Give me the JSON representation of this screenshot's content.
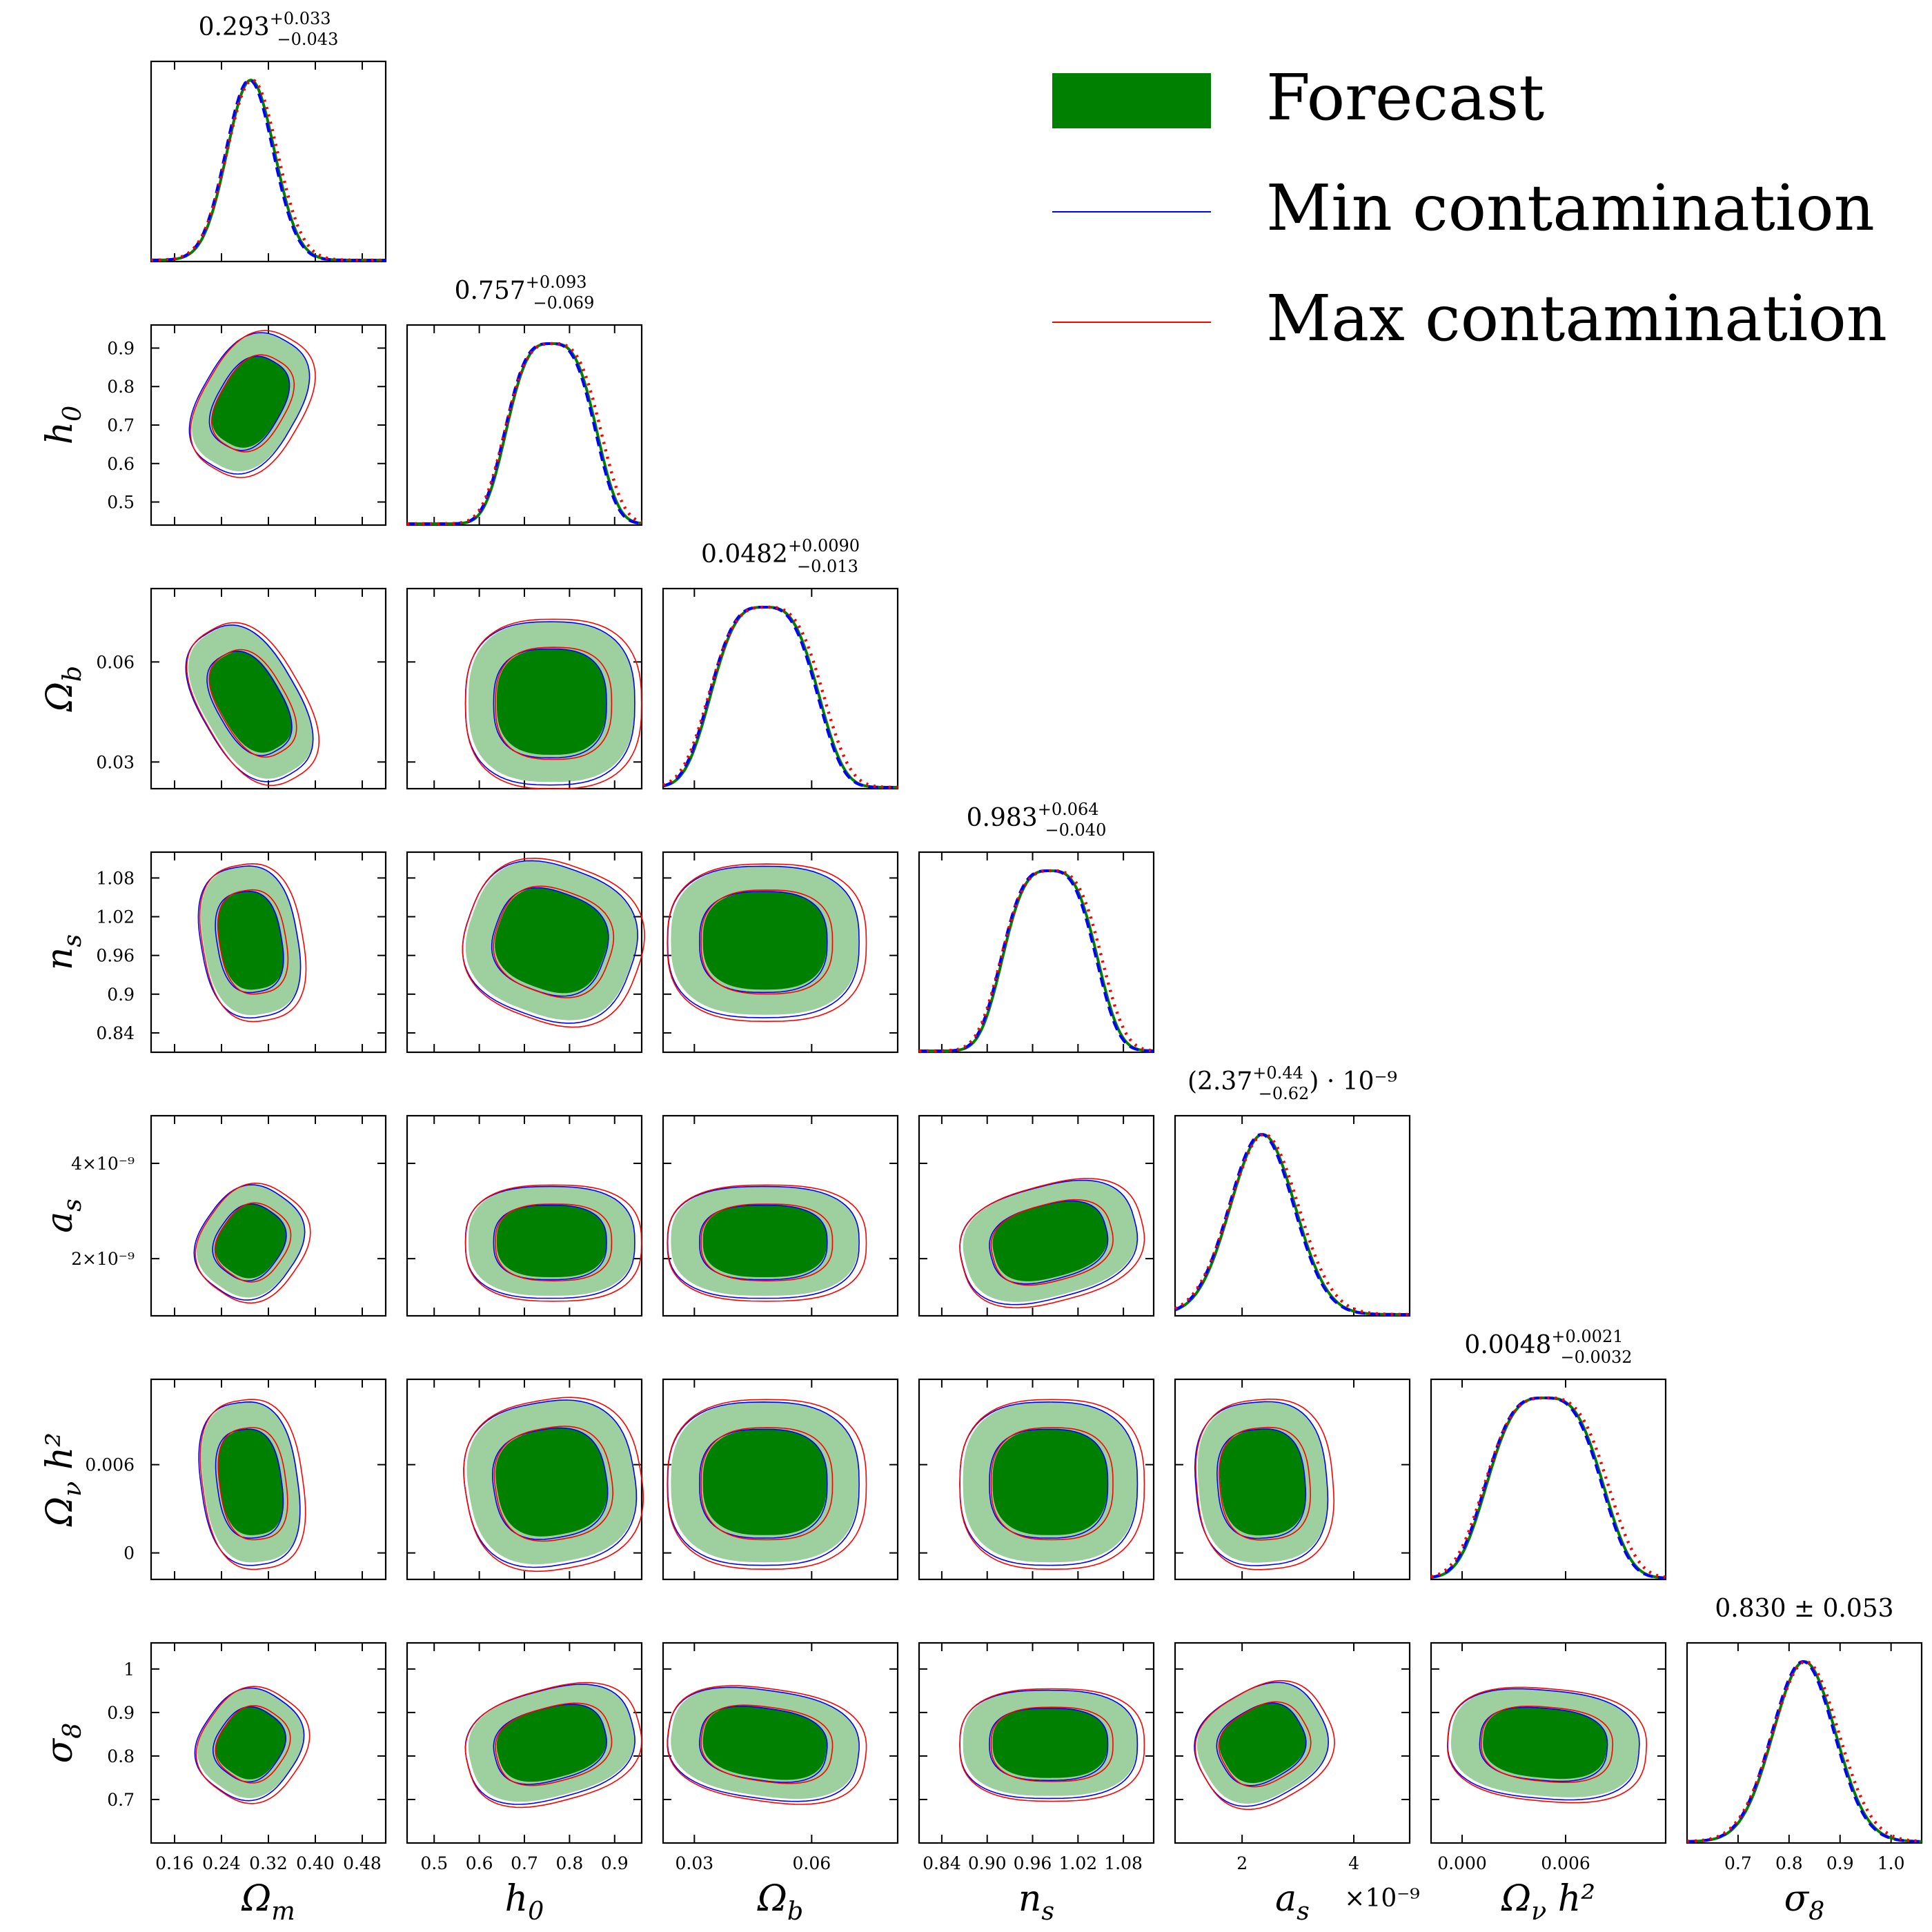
{
  "legend": {
    "items": [
      {
        "label": "Forecast",
        "color": "#008000",
        "kind": "filled"
      },
      {
        "label": "Min contamination",
        "color": "#0000ff",
        "kind": "line"
      },
      {
        "label": "Max contamination",
        "color": "#ff0000",
        "kind": "line"
      }
    ]
  },
  "chart_data": {
    "type": "corner",
    "parameters": [
      {
        "key": "om",
        "axis_label": "Ω_m",
        "range": [
          0.12,
          0.52
        ],
        "ticks": [
          0.16,
          0.24,
          0.32,
          0.4,
          0.48
        ],
        "tick_labels": [
          "0.16",
          "0.24",
          "0.32",
          "0.40",
          "0.48"
        ],
        "ytick_labels": [],
        "title_main": "0.293",
        "title_sup": "+0.033",
        "title_sub": "−0.043",
        "center": 0.29,
        "sigma": 0.035
      },
      {
        "key": "h0",
        "axis_label": "h_0",
        "range": [
          0.44,
          0.96
        ],
        "ticks": [
          0.5,
          0.6,
          0.7,
          0.8,
          0.9
        ],
        "tick_labels": [
          "0.5",
          "0.6",
          "0.7",
          "0.8",
          "0.9"
        ],
        "ytick_labels": [
          "0.9",
          "0.8",
          "0.7",
          "0.6",
          "0.5"
        ],
        "title_main": "0.757",
        "title_sup": "+0.093",
        "title_sub": "−0.069",
        "center": 0.76,
        "sigma": 0.08
      },
      {
        "key": "ob",
        "axis_label": "Ω_b",
        "range": [
          0.022,
          0.082
        ],
        "ticks": [
          0.03,
          0.06
        ],
        "tick_labels": [
          "0.03",
          "0.06"
        ],
        "ytick_labels": [
          "0.06",
          "0.03"
        ],
        "title_main": "0.0482",
        "title_sup": "+0.0090",
        "title_sub": "−0.013",
        "center": 0.048,
        "sigma": 0.011
      },
      {
        "key": "ns",
        "axis_label": "n_s",
        "range": [
          0.81,
          1.12
        ],
        "ticks": [
          0.84,
          0.9,
          0.96,
          1.02,
          1.08
        ],
        "tick_labels": [
          "0.84",
          "0.90",
          "0.96",
          "1.02",
          "1.08"
        ],
        "ytick_labels": [
          "1.08",
          "1.02",
          "0.96",
          "0.9",
          "0.84"
        ],
        "title_main": "0.983",
        "title_sup": "+0.064",
        "title_sub": "−0.040",
        "center": 0.983,
        "sigma": 0.05
      },
      {
        "key": "as",
        "axis_label": "a_s",
        "range": [
          8e-10,
          5e-09
        ],
        "ticks": [
          2e-09,
          4e-09
        ],
        "tick_labels": [
          "2",
          "4"
        ],
        "ytick_labels": [
          "4×10⁻⁹",
          "2×10⁻⁹"
        ],
        "offset_label": "×10⁻⁹",
        "title_main": "(2.37",
        "title_sup": "+0.44",
        "title_sub": "−0.62",
        "title_suffix": ") · 10⁻⁹",
        "center": 2.37e-09,
        "sigma": 5e-10
      },
      {
        "key": "onu",
        "axis_label": "Ω_ν h²",
        "range": [
          -0.0018,
          0.0118
        ],
        "ticks": [
          0.0,
          0.006
        ],
        "tick_labels": [
          "0.000",
          "0.006"
        ],
        "ytick_labels": [
          "0.006",
          "0"
        ],
        "title_main": "0.0048",
        "title_sup": "+0.0021",
        "title_sub": "−0.0032",
        "center": 0.0048,
        "sigma": 0.0027
      },
      {
        "key": "s8",
        "axis_label": "σ_8",
        "range": [
          0.6,
          1.06
        ],
        "ticks": [
          0.7,
          0.8,
          0.9,
          1.0
        ],
        "tick_labels": [
          "0.7",
          "0.8",
          "0.9",
          "1.0"
        ],
        "ytick_labels": [
          "1",
          "0.9",
          "0.8",
          "0.7"
        ],
        "title_main": "0.830 ± 0.053",
        "title_sup": "",
        "title_sub": "",
        "center": 0.83,
        "sigma": 0.053
      }
    ],
    "series": [
      {
        "name": "Forecast",
        "color": "#008000",
        "style": "filled"
      },
      {
        "name": "Min contamination",
        "color": "#0000ff",
        "style": "dashed"
      },
      {
        "name": "Max contamination",
        "color": "#ff0000",
        "style": "dotted"
      }
    ]
  }
}
